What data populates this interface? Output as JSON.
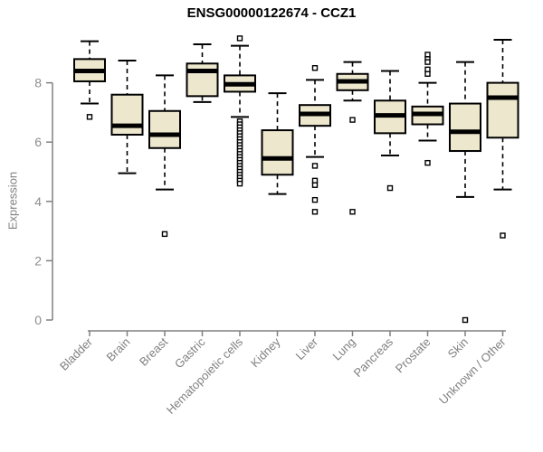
{
  "chart_data": {
    "type": "boxplot",
    "title": "ENSG00000122674 - CCZ1",
    "ylabel": "Expression",
    "yticks": [
      0,
      2,
      4,
      6,
      8
    ],
    "ylim": [
      0,
      9.7
    ],
    "grid": false,
    "legend": "none",
    "categories": [
      "Bladder",
      "Brain",
      "Breast",
      "Gastric",
      "Hematopoietic cells",
      "Kidney",
      "Liver",
      "Lung",
      "Pancreas",
      "Prostate",
      "Skin",
      "Unknown / Other"
    ],
    "series": [
      {
        "category": "Bladder",
        "low": 7.3,
        "q1": 8.05,
        "median": 8.4,
        "q3": 8.8,
        "high": 9.4,
        "outliers": [
          6.85
        ]
      },
      {
        "category": "Brain",
        "low": 4.95,
        "q1": 6.25,
        "median": 6.55,
        "q3": 7.6,
        "high": 8.75,
        "outliers": []
      },
      {
        "category": "Breast",
        "low": 4.4,
        "q1": 5.8,
        "median": 6.25,
        "q3": 7.05,
        "high": 8.25,
        "outliers": [
          2.9
        ]
      },
      {
        "category": "Gastric",
        "low": 7.35,
        "q1": 7.55,
        "median": 8.4,
        "q3": 8.65,
        "high": 9.3,
        "outliers": []
      },
      {
        "category": "Hematopoietic cells",
        "low": 6.85,
        "q1": 7.7,
        "median": 7.95,
        "q3": 8.25,
        "high": 9.25,
        "outliers": [
          9.5,
          6.7,
          6.6,
          6.5,
          6.4,
          6.3,
          6.2,
          6.1,
          6.0,
          5.9,
          5.8,
          5.7,
          5.6,
          5.5,
          5.4,
          5.3,
          5.2,
          5.1,
          5.0,
          4.9,
          4.8,
          4.7,
          4.6
        ]
      },
      {
        "category": "Kidney",
        "low": 4.25,
        "q1": 4.9,
        "median": 5.45,
        "q3": 6.4,
        "high": 7.65,
        "outliers": []
      },
      {
        "category": "Liver",
        "low": 5.5,
        "q1": 6.55,
        "median": 6.95,
        "q3": 7.25,
        "high": 8.1,
        "outliers": [
          8.5,
          5.2,
          4.7,
          4.55,
          4.05,
          3.65
        ]
      },
      {
        "category": "Lung",
        "low": 7.4,
        "q1": 7.75,
        "median": 8.05,
        "q3": 8.3,
        "high": 8.7,
        "outliers": [
          6.75,
          3.65
        ]
      },
      {
        "category": "Pancreas",
        "low": 5.55,
        "q1": 6.3,
        "median": 6.9,
        "q3": 7.4,
        "high": 8.4,
        "outliers": [
          4.45
        ]
      },
      {
        "category": "Prostate",
        "low": 6.05,
        "q1": 6.6,
        "median": 6.95,
        "q3": 7.2,
        "high": 8.0,
        "outliers": [
          8.95,
          8.8,
          8.7,
          8.45,
          8.3,
          5.3
        ]
      },
      {
        "category": "Skin",
        "low": 4.15,
        "q1": 5.7,
        "median": 6.35,
        "q3": 7.3,
        "high": 8.7,
        "outliers": [
          0
        ]
      },
      {
        "category": "Unknown / Other",
        "low": 4.4,
        "q1": 6.15,
        "median": 7.5,
        "q3": 8.0,
        "high": 9.45,
        "outliers": [
          2.85
        ]
      }
    ],
    "colors": {
      "box_fill": "#EDE7CD",
      "box_border": "#000000",
      "median": "#000000",
      "whisker": "#000000",
      "outlier_fill": "#FFFFFF",
      "axis": "#808080",
      "tick_label": "#8C8C8C",
      "x_label": "#808080",
      "title": "#000000",
      "background": "#FFFFFF"
    }
  }
}
